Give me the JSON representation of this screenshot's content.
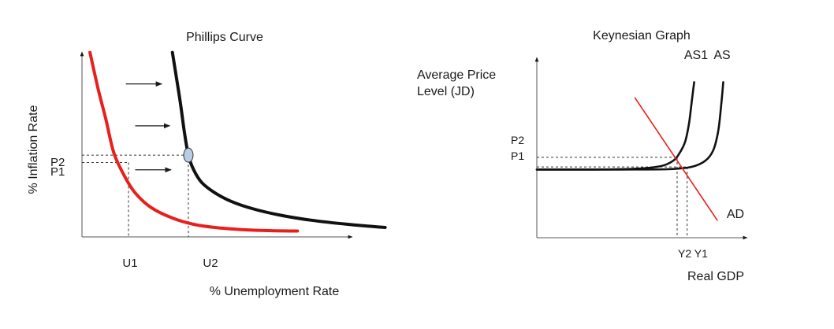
{
  "chart_data": [
    {
      "type": "line",
      "title": "Phillips Curve",
      "xlabel": "% Unemployment Rate",
      "ylabel": "% Inflation Rate",
      "grid": false,
      "legend": "none",
      "x_ticks": [
        "U1",
        "U2"
      ],
      "y_ticks": [
        "P2",
        "P1"
      ],
      "series": [
        {
          "color": "#e8201c",
          "description": "original Phillips curve",
          "x": [
            0.3,
            0.6,
            0.9,
            1.2,
            1.6,
            2.0,
            2.6,
            3.4,
            4.2,
            5.0,
            6.0,
            7.0,
            8.1
          ],
          "y": [
            8.8,
            7.1,
            5.6,
            4.0,
            2.9,
            2.1,
            1.4,
            0.9,
            0.6,
            0.45,
            0.35,
            0.3,
            0.28
          ]
        },
        {
          "color": "#111111",
          "description": "shifted Phillips curve",
          "x": [
            3.4,
            3.55,
            3.7,
            3.85,
            4.0,
            4.2,
            4.5,
            5.0,
            5.6,
            6.4,
            7.4,
            8.6,
            10.0,
            11.4
          ],
          "y": [
            8.8,
            7.6,
            6.4,
            5.0,
            3.9,
            3.2,
            2.6,
            2.1,
            1.7,
            1.35,
            1.05,
            0.8,
            0.6,
            0.45
          ]
        }
      ],
      "points": [
        {
          "x": 4.0,
          "y": 3.9,
          "color": "#b8cce4"
        }
      ],
      "guides": {
        "U1": 1.75,
        "U2": 4.0,
        "P2": 3.9,
        "P1": 3.55
      },
      "xlim": [
        0,
        11.5
      ],
      "ylim": [
        0,
        9.5
      ],
      "arrows": [
        {
          "x0": 1.65,
          "x1": 3.0,
          "y": 7.3
        },
        {
          "x0": 2.0,
          "x1": 3.3,
          "y": 5.3
        },
        {
          "x0": 2.0,
          "x1": 3.35,
          "y": 3.2
        }
      ]
    },
    {
      "type": "line",
      "title": "Keynesian Graph",
      "xlabel": "Real GDP",
      "ylabel": "Average Price Level (JD)",
      "ylabel_lines": [
        "Average Price",
        "Level (JD)"
      ],
      "grid": false,
      "legend": "none",
      "x_ticks": [
        "Y2 Y1"
      ],
      "y_ticks": [
        "P2",
        "P1"
      ],
      "series": [
        {
          "name": "AS1",
          "color": "#111111",
          "x": [
            0.0,
            3.0,
            5.0,
            6.2,
            6.8,
            7.1,
            7.4,
            7.6,
            7.75,
            7.85
          ],
          "y": [
            3.9,
            3.9,
            3.95,
            4.1,
            4.4,
            4.8,
            5.5,
            6.6,
            8.0,
            8.9
          ]
        },
        {
          "name": "AS",
          "color": "#111111",
          "x": [
            0.0,
            4.0,
            6.5,
            7.7,
            8.4,
            8.8,
            9.05,
            9.2,
            9.3
          ],
          "y": [
            3.9,
            3.9,
            3.92,
            4.05,
            4.4,
            5.0,
            6.1,
            7.6,
            8.9
          ]
        },
        {
          "name": "AD",
          "color": "#e8201c",
          "x": [
            4.9,
            9.0
          ],
          "y": [
            8.0,
            1.0
          ]
        }
      ],
      "guides": {
        "Y2": 7.0,
        "Y1": 7.5,
        "P2": 4.6,
        "P1": 4.05
      },
      "xlim": [
        0,
        10.5
      ],
      "ylim": [
        0,
        10
      ]
    }
  ]
}
